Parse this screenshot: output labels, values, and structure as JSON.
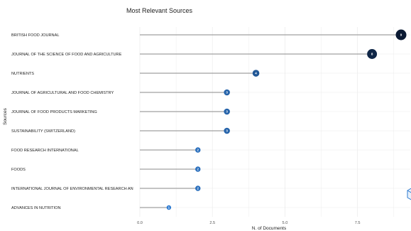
{
  "chart_data": {
    "type": "lollipop",
    "title": "Most Relevant Sources",
    "xlabel": "N. of Documents",
    "ylabel": "Sources",
    "xlim": [
      0,
      9
    ],
    "xticks": [
      "0.0",
      "2.5",
      "5.0",
      "7.5"
    ],
    "xtick_values": [
      0,
      2.5,
      5,
      7.5
    ],
    "grid": true,
    "categories": [
      "BRITISH FOOD JOURNAL",
      "JOURNAL OF THE SCIENCE OF FOOD AND AGRICULTURE",
      "NUTRIENTS",
      "JOURNAL OF AGRICULTURAL AND FOOD CHEMISTRY",
      "JOURNAL OF FOOD PRODUCTS MARKETING",
      "SUSTAINABILITY (SWITZERLAND)",
      "FOOD RESEARCH INTERNATIONAL",
      "FOODS",
      "INTERNATIONAL JOURNAL OF ENVIRONMENTAL RESEARCH AN",
      "ADVANCES IN NUTRITION"
    ],
    "values": [
      9,
      8,
      4,
      3,
      3,
      3,
      2,
      2,
      2,
      1
    ],
    "colors": {
      "low": "#2e7bd1",
      "high": "#0b1a33",
      "stem": "#8a8a8a",
      "grid": "#ececec"
    }
  }
}
